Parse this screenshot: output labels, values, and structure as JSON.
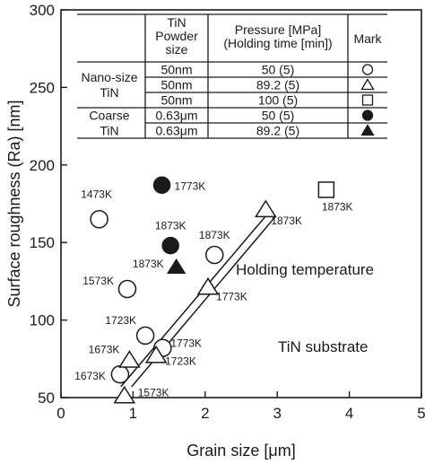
{
  "chart_data": {
    "type": "scatter",
    "xlabel": "Grain size [μm]",
    "ylabel": "Surface roughness (Ra) [nm]",
    "xlim": [
      0,
      5
    ],
    "ylim": [
      50,
      300
    ],
    "xticks": [
      "0",
      "1",
      "2",
      "3",
      "4",
      "5"
    ],
    "yticks": [
      "50",
      "100",
      "150",
      "200",
      "250",
      "300"
    ],
    "grid": false,
    "legend_table": {
      "headers": [
        "TiN Powder size",
        "Pressure [MPa] (Holding time [min])",
        "Mark"
      ],
      "header_lines": [
        [
          "TiN",
          "Powder",
          "size"
        ],
        [
          "Pressure [MPa]",
          "(Holding time [min])"
        ],
        [
          "Mark"
        ]
      ],
      "groups": [
        {
          "label_lines": [
            "Nano-size",
            "TiN"
          ],
          "rows": [
            {
              "size": "50nm",
              "pressure": "50 (5)",
              "mark": "open-circle"
            },
            {
              "size": "50nm",
              "pressure": "89.2 (5)",
              "mark": "open-triangle"
            },
            {
              "size": "50nm",
              "pressure": "100 (5)",
              "mark": "open-square"
            }
          ]
        },
        {
          "label_lines": [
            "Coarse",
            "TiN"
          ],
          "rows": [
            {
              "size": "0.63μm",
              "pressure": "50 (5)",
              "mark": "filled-circle"
            },
            {
              "size": "0.63μm",
              "pressure": "89.2 (5)",
              "mark": "filled-triangle"
            }
          ]
        }
      ]
    },
    "series": [
      {
        "marker": "open-circle",
        "points": [
          {
            "x": 0.53,
            "y": 165,
            "label": "1473K"
          },
          {
            "x": 0.92,
            "y": 120,
            "label": "1573K"
          },
          {
            "x": 0.82,
            "y": 65,
            "label": "1673K"
          },
          {
            "x": 1.17,
            "y": 90,
            "label": "1723K"
          },
          {
            "x": 1.41,
            "y": 82,
            "label": "1773K"
          },
          {
            "x": 2.13,
            "y": 142,
            "label": "1873K"
          }
        ]
      },
      {
        "marker": "open-triangle",
        "points": [
          {
            "x": 0.88,
            "y": 51,
            "label": "1573K"
          },
          {
            "x": 0.95,
            "y": 74,
            "label": "1673K"
          },
          {
            "x": 1.32,
            "y": 77,
            "label": "1723K"
          },
          {
            "x": 2.04,
            "y": 121,
            "label": "1773K"
          },
          {
            "x": 2.84,
            "y": 171,
            "label": "1873K"
          }
        ]
      },
      {
        "marker": "open-square",
        "points": [
          {
            "x": 3.68,
            "y": 184,
            "label": "1873K"
          }
        ]
      },
      {
        "marker": "filled-circle",
        "points": [
          {
            "x": 1.4,
            "y": 187,
            "label": "1773K"
          },
          {
            "x": 1.52,
            "y": 148,
            "label": "1873K"
          }
        ]
      },
      {
        "marker": "filled-triangle",
        "points": [
          {
            "x": 1.6,
            "y": 134,
            "label": "1873K"
          }
        ]
      }
    ],
    "trend_lines": [
      {
        "from": [
          0.83,
          57
        ],
        "to": [
          2.84,
          167
        ]
      },
      {
        "from": [
          0.98,
          57
        ],
        "to": [
          2.98,
          167
        ]
      }
    ],
    "annotations": [
      "Holding temperature",
      "TiN substrate"
    ]
  }
}
